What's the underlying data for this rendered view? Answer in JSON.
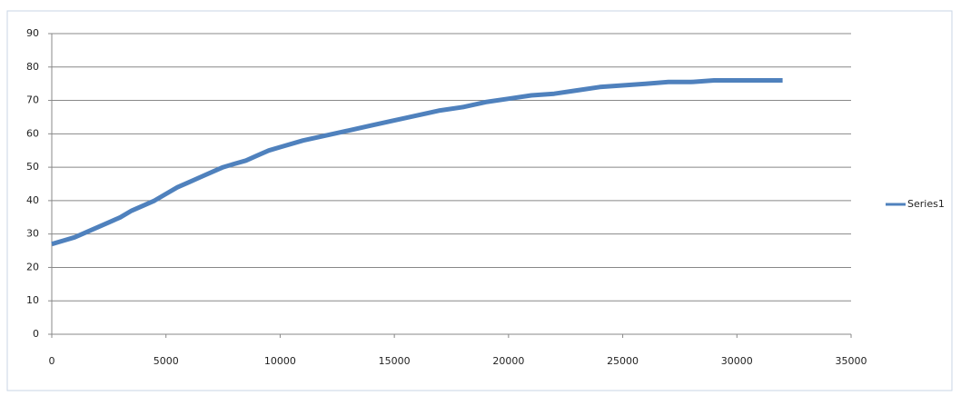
{
  "chart_data": {
    "type": "line",
    "x": [
      0,
      500,
      1000,
      1500,
      2000,
      2500,
      3000,
      3500,
      4000,
      4500,
      5000,
      5500,
      6000,
      6500,
      7000,
      7500,
      8000,
      8500,
      9000,
      9500,
      10000,
      11000,
      12000,
      13000,
      14000,
      15000,
      16000,
      17000,
      18000,
      19000,
      20000,
      21000,
      22000,
      23000,
      24000,
      25000,
      26000,
      27000,
      28000,
      29000,
      30000,
      31000,
      32000
    ],
    "series": [
      {
        "name": "Series1",
        "color": "#4f81bd",
        "values": [
          27,
          28,
          29,
          30.5,
          32,
          33.5,
          35,
          37,
          38.5,
          40,
          42,
          44,
          45.5,
          47,
          48.5,
          50,
          51,
          52,
          53.5,
          55,
          56,
          58,
          59.5,
          61,
          62.5,
          64,
          65.5,
          67,
          68,
          69.5,
          70.5,
          71.5,
          72,
          73,
          74,
          74.5,
          75,
          75.5,
          75.5,
          76,
          76,
          76,
          76
        ]
      }
    ],
    "xlim": [
      0,
      35000
    ],
    "xticks": [
      0,
      5000,
      10000,
      15000,
      20000,
      25000,
      30000,
      35000
    ],
    "ylim": [
      0,
      90
    ],
    "yticks": [
      0,
      10,
      20,
      30,
      40,
      50,
      60,
      70,
      80,
      90
    ],
    "grid": true,
    "legend": "right"
  }
}
